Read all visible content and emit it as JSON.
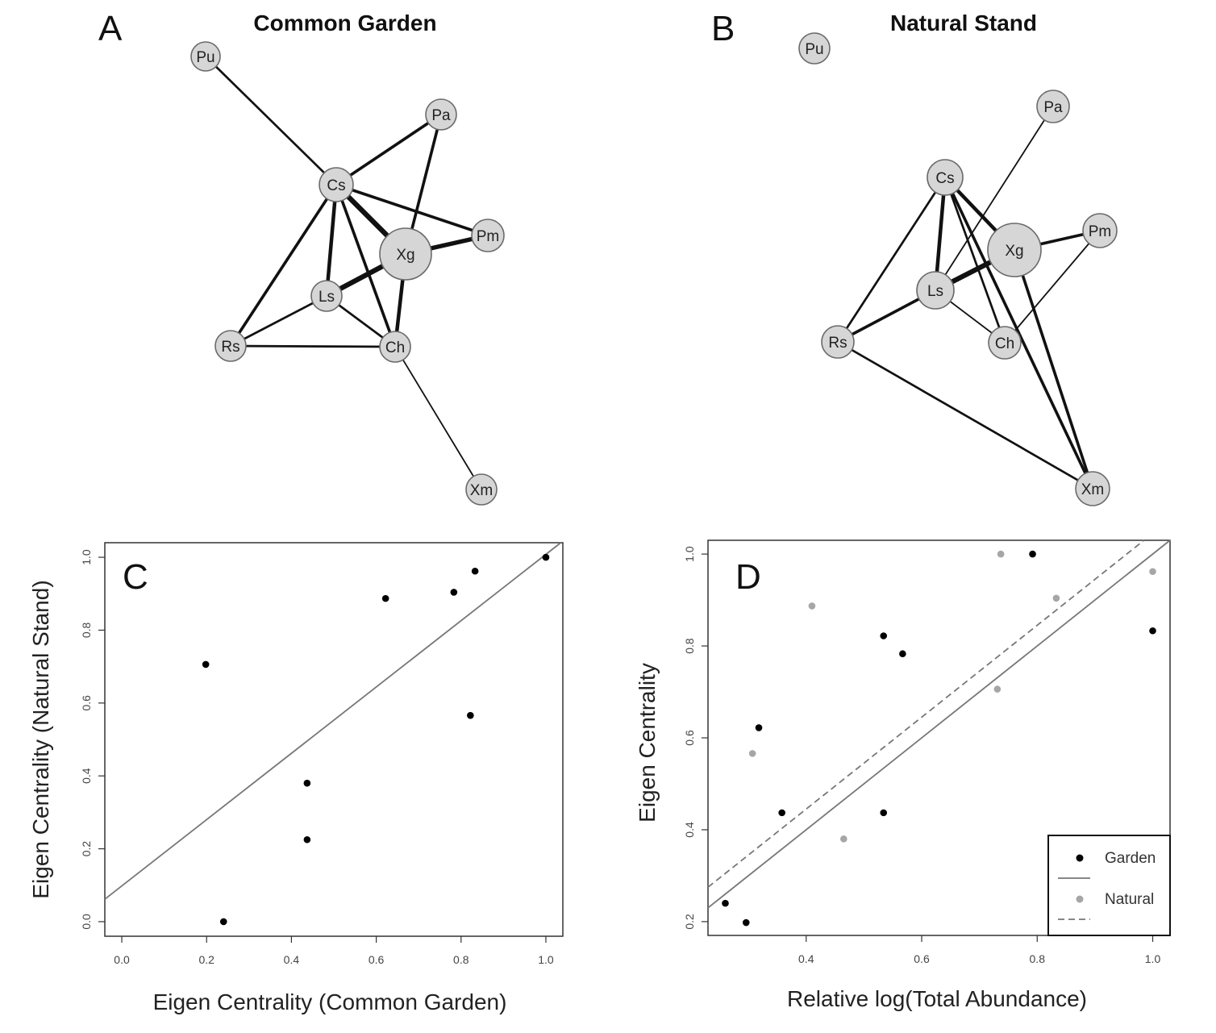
{
  "chart_data": [
    {
      "type": "network",
      "panel": "A",
      "title": "Common Garden",
      "nodes": [
        {
          "id": "Pu",
          "label": "Pu"
        },
        {
          "id": "Pa",
          "label": "Pa"
        },
        {
          "id": "Cs",
          "label": "Cs"
        },
        {
          "id": "Pm",
          "label": "Pm"
        },
        {
          "id": "Xg",
          "label": "Xg"
        },
        {
          "id": "Ls",
          "label": "Ls"
        },
        {
          "id": "Rs",
          "label": "Rs"
        },
        {
          "id": "Ch",
          "label": "Ch"
        },
        {
          "id": "Xm",
          "label": "Xm"
        }
      ],
      "edges": [
        {
          "source": "Pu",
          "target": "Cs",
          "weight": 3
        },
        {
          "source": "Cs",
          "target": "Pa",
          "weight": 4
        },
        {
          "source": "Pa",
          "target": "Xg",
          "weight": 4
        },
        {
          "source": "Cs",
          "target": "Pm",
          "weight": 4
        },
        {
          "source": "Xg",
          "target": "Pm",
          "weight": 6
        },
        {
          "source": "Cs",
          "target": "Xg",
          "weight": 7
        },
        {
          "source": "Cs",
          "target": "Ls",
          "weight": 5
        },
        {
          "source": "Cs",
          "target": "Rs",
          "weight": 4
        },
        {
          "source": "Cs",
          "target": "Ch",
          "weight": 4
        },
        {
          "source": "Ls",
          "target": "Xg",
          "weight": 7
        },
        {
          "source": "Ls",
          "target": "Rs",
          "weight": 3
        },
        {
          "source": "Ls",
          "target": "Ch",
          "weight": 3
        },
        {
          "source": "Rs",
          "target": "Ch",
          "weight": 3
        },
        {
          "source": "Xg",
          "target": "Ch",
          "weight": 5
        },
        {
          "source": "Ch",
          "target": "Xm",
          "weight": 2
        }
      ]
    },
    {
      "type": "network",
      "panel": "B",
      "title": "Natural Stand",
      "nodes": [
        {
          "id": "Pu",
          "label": "Pu"
        },
        {
          "id": "Pa",
          "label": "Pa"
        },
        {
          "id": "Cs",
          "label": "Cs"
        },
        {
          "id": "Xg",
          "label": "Xg"
        },
        {
          "id": "Pm",
          "label": "Pm"
        },
        {
          "id": "Ls",
          "label": "Ls"
        },
        {
          "id": "Rs",
          "label": "Rs"
        },
        {
          "id": "Ch",
          "label": "Ch"
        },
        {
          "id": "Xm",
          "label": "Xm"
        }
      ],
      "edges": [
        {
          "source": "Pa",
          "target": "Ls",
          "weight": 2
        },
        {
          "source": "Cs",
          "target": "Ls",
          "weight": 5
        },
        {
          "source": "Cs",
          "target": "Xg",
          "weight": 5
        },
        {
          "source": "Cs",
          "target": "Rs",
          "weight": 3
        },
        {
          "source": "Cs",
          "target": "Ch",
          "weight": 3
        },
        {
          "source": "Cs",
          "target": "Xm",
          "weight": 4
        },
        {
          "source": "Ls",
          "target": "Xg",
          "weight": 7
        },
        {
          "source": "Ls",
          "target": "Rs",
          "weight": 4
        },
        {
          "source": "Ls",
          "target": "Ch",
          "weight": 2
        },
        {
          "source": "Xg",
          "target": "Pm",
          "weight": 4
        },
        {
          "source": "Xg",
          "target": "Xm",
          "weight": 4
        },
        {
          "source": "Pm",
          "target": "Ch",
          "weight": 2
        },
        {
          "source": "Rs",
          "target": "Xm",
          "weight": 3
        }
      ]
    },
    {
      "type": "scatter",
      "panel": "C",
      "xlabel": "Eigen Centrality (Common Garden)",
      "ylabel": "Eigen Centrality (Natural Stand)",
      "xlim": [
        -0.04,
        1.04
      ],
      "ylim": [
        -0.04,
        1.04
      ],
      "xticks": [
        "0.0",
        "0.2",
        "0.4",
        "0.6",
        "0.8",
        "1.0"
      ],
      "yticks": [
        "0.0",
        "0.2",
        "0.4",
        "0.6",
        "0.8",
        "1.0"
      ],
      "points": [
        {
          "x": 0.198,
          "y": 0.706
        },
        {
          "x": 0.24,
          "y": 0.0
        },
        {
          "x": 0.437,
          "y": 0.38
        },
        {
          "x": 0.437,
          "y": 0.225
        },
        {
          "x": 0.622,
          "y": 0.887
        },
        {
          "x": 0.783,
          "y": 0.904
        },
        {
          "x": 0.822,
          "y": 0.566
        },
        {
          "x": 0.833,
          "y": 0.962
        },
        {
          "x": 1.0,
          "y": 1.0
        }
      ],
      "fit_line": {
        "intercept": 0.098,
        "slope": 0.91
      },
      "colors": {
        "points": "#000000",
        "line": "#777777"
      }
    },
    {
      "type": "scatter",
      "panel": "D",
      "xlabel": "Relative log(Total Abundance)",
      "ylabel": "Eigen Centrality",
      "xlim": [
        0.23,
        1.03
      ],
      "ylim": [
        0.17,
        1.03
      ],
      "xticks": [
        "0.4",
        "0.6",
        "0.8",
        "1.0"
      ],
      "yticks": [
        "0.2",
        "0.4",
        "0.6",
        "0.8",
        "1.0"
      ],
      "series": [
        {
          "name": "Garden",
          "color": "#000000",
          "line_style": "solid",
          "points": [
            {
              "x": 0.26,
              "y": 0.24
            },
            {
              "x": 0.296,
              "y": 0.198
            },
            {
              "x": 0.318,
              "y": 0.622
            },
            {
              "x": 0.358,
              "y": 0.437
            },
            {
              "x": 0.534,
              "y": 0.822
            },
            {
              "x": 0.534,
              "y": 0.437
            },
            {
              "x": 0.567,
              "y": 0.783
            },
            {
              "x": 0.792,
              "y": 1.0
            },
            {
              "x": 1.0,
              "y": 0.833
            }
          ],
          "fit_line": {
            "intercept": 0.0,
            "slope": 1.0
          }
        },
        {
          "name": "Natural",
          "color": "#a6a6a6",
          "line_style": "dashed",
          "points": [
            {
              "x": 0.307,
              "y": 0.566
            },
            {
              "x": 0.41,
              "y": 0.887
            },
            {
              "x": 0.465,
              "y": 0.38
            },
            {
              "x": 0.731,
              "y": 0.706
            },
            {
              "x": 0.737,
              "y": 1.0
            },
            {
              "x": 0.833,
              "y": 0.904
            },
            {
              "x": 1.0,
              "y": 0.962
            }
          ],
          "fit_line": {
            "intercept": 0.045,
            "slope": 1.0
          }
        }
      ],
      "legend": {
        "placement": "bottom-right",
        "entries": [
          {
            "label": "Garden",
            "marker_color": "#000000",
            "line": "solid"
          },
          {
            "label": "Natural",
            "marker_color": "#a6a6a6",
            "line": "dashed"
          }
        ]
      },
      "colors": {
        "line": "#777777"
      }
    }
  ]
}
